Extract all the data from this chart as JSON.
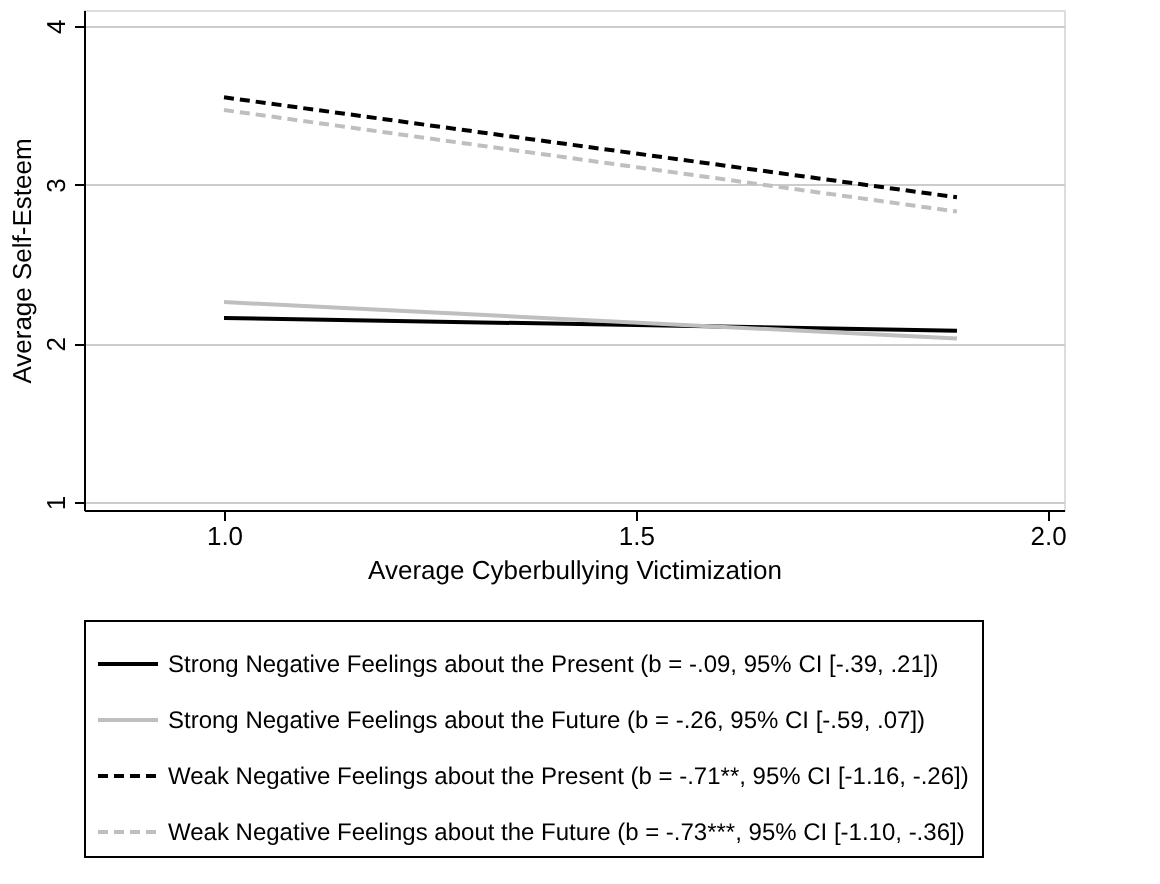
{
  "chart_data": {
    "type": "line",
    "xlabel": "Average Cyberbullying Victimization",
    "ylabel": "Average Self-Esteem",
    "x": [
      1.0,
      1.89
    ],
    "series": [
      {
        "name": "Strong Negative Feelings about the Present (b = -.09, 95% CI [-.39, .21])",
        "color": "#000000",
        "line_style": "solid",
        "values": [
          2.16,
          2.08
        ]
      },
      {
        "name": "Strong Negative Feelings about the Future (b = -.26, 95% CI [-.59, .07])",
        "color": "#bfbfbf",
        "line_style": "solid",
        "values": [
          2.26,
          2.03
        ]
      },
      {
        "name": "Weak Negative Feelings about the Present (b = -.71**, 95% CI [-1.16, -.26])",
        "color": "#000000",
        "line_style": "dashed",
        "values": [
          3.55,
          2.92
        ]
      },
      {
        "name": "Weak Negative Feelings about the Future (b = -.73***, 95% CI [-1.10, -.36])",
        "color": "#bfbfbf",
        "line_style": "dashed",
        "values": [
          3.47,
          2.83
        ]
      }
    ],
    "xlim": [
      0.83,
      2.02
    ],
    "xticks": [
      {
        "value": 1,
        "label": "1.0"
      },
      1.5,
      {
        "value": 2,
        "label": "2.0"
      }
    ],
    "ylim": [
      0.95,
      4.1
    ],
    "yticks": [
      1,
      2,
      3,
      4
    ],
    "grid": "y",
    "legend": "bottom",
    "marker": "none"
  }
}
